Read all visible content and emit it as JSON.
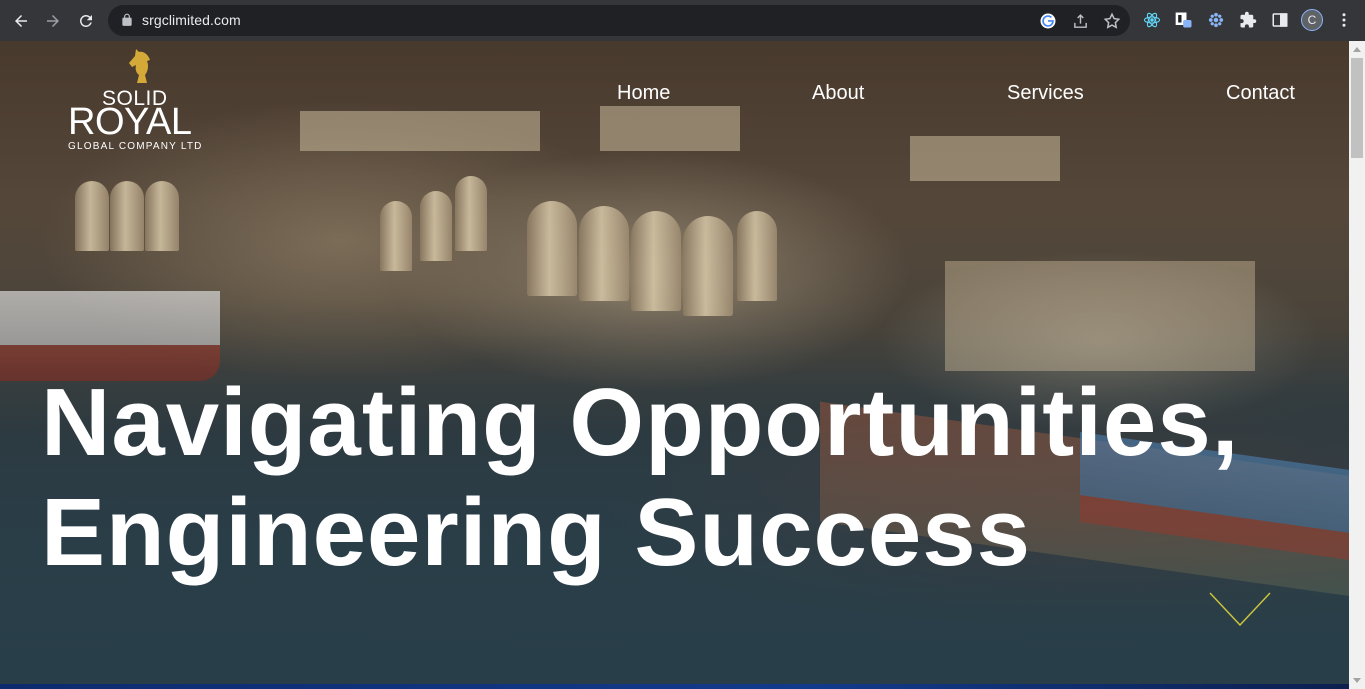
{
  "browser": {
    "url": "srgclimited.com",
    "profile_initial": "C",
    "icons": [
      "back-arrow-icon",
      "forward-arrow-icon",
      "reload-icon",
      "lock-icon",
      "google-icon",
      "share-icon",
      "star-icon",
      "react-devtools-icon",
      "extension-box-icon",
      "flower-extension-icon",
      "puzzle-icon",
      "side-panel-icon",
      "menu-dots-icon"
    ]
  },
  "site": {
    "logo": {
      "line1": "SOLID",
      "line2": "ROYAL",
      "line3": "GLOBAL COMPANY LTD"
    },
    "nav": [
      {
        "label": "Home"
      },
      {
        "label": "About"
      },
      {
        "label": "Services"
      },
      {
        "label": "Contact"
      }
    ],
    "hero": {
      "headline_line1": "Navigating Opportunities,",
      "headline_line2": "Engineering Success"
    }
  },
  "colors": {
    "logo_gold": "#d4a937",
    "chevron": "#c9c43a",
    "chrome_bg": "#35363a",
    "omnibox_bg": "#202124"
  }
}
